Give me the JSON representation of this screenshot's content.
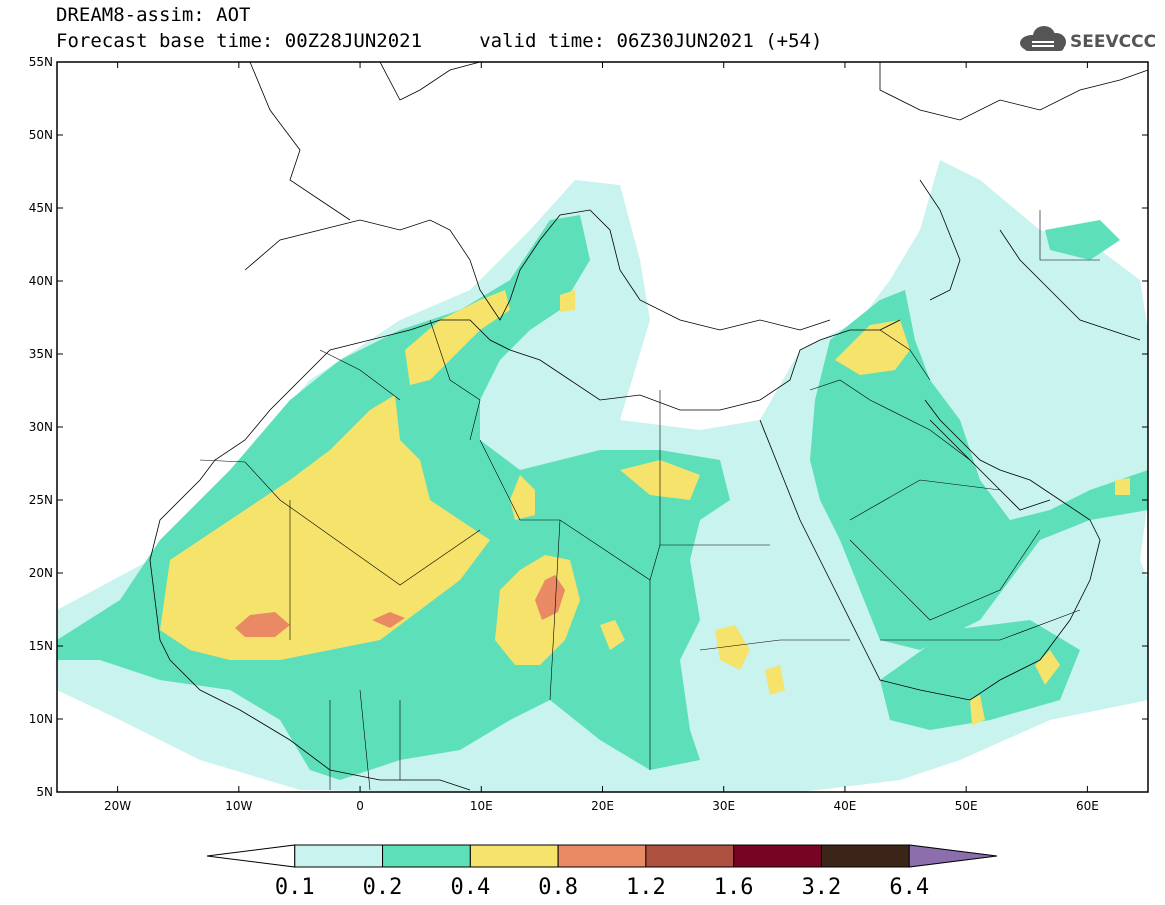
{
  "header": {
    "line1": "DREAM8-assim: AOT",
    "line2": "Forecast base time: 00Z28JUN2021     valid time: 06Z30JUN2021 (+54)"
  },
  "logo": {
    "text": "SEEVCCC",
    "icon": "cloud-icon",
    "color": "#555555"
  },
  "map": {
    "lon_range": [
      -25,
      65
    ],
    "lat_range": [
      5,
      55
    ],
    "lon_ticks": [
      {
        "value": -20,
        "label": "20W"
      },
      {
        "value": -10,
        "label": "10W"
      },
      {
        "value": 0,
        "label": "0"
      },
      {
        "value": 10,
        "label": "10E"
      },
      {
        "value": 20,
        "label": "20E"
      },
      {
        "value": 30,
        "label": "30E"
      },
      {
        "value": 40,
        "label": "40E"
      },
      {
        "value": 50,
        "label": "50E"
      },
      {
        "value": 60,
        "label": "60E"
      }
    ],
    "lat_ticks": [
      {
        "value": 55,
        "label": "55N"
      },
      {
        "value": 50,
        "label": "50N"
      },
      {
        "value": 45,
        "label": "45N"
      },
      {
        "value": 40,
        "label": "40N"
      },
      {
        "value": 35,
        "label": "35N"
      },
      {
        "value": 30,
        "label": "30N"
      },
      {
        "value": 25,
        "label": "25N"
      },
      {
        "value": 20,
        "label": "20N"
      },
      {
        "value": 15,
        "label": "15N"
      },
      {
        "value": 10,
        "label": "10N"
      },
      {
        "value": 5,
        "label": "5N"
      }
    ]
  },
  "colorbar": {
    "colors": [
      "#ffffff",
      "#c8f3ee",
      "#5de0b9",
      "#f6e36c",
      "#ea8a64",
      "#ae5141",
      "#780424",
      "#3a2518",
      "#8c6ead"
    ],
    "labels": [
      "0.1",
      "0.2",
      "0.4",
      "0.8",
      "1.2",
      "1.6",
      "3.2",
      "6.4"
    ]
  }
}
